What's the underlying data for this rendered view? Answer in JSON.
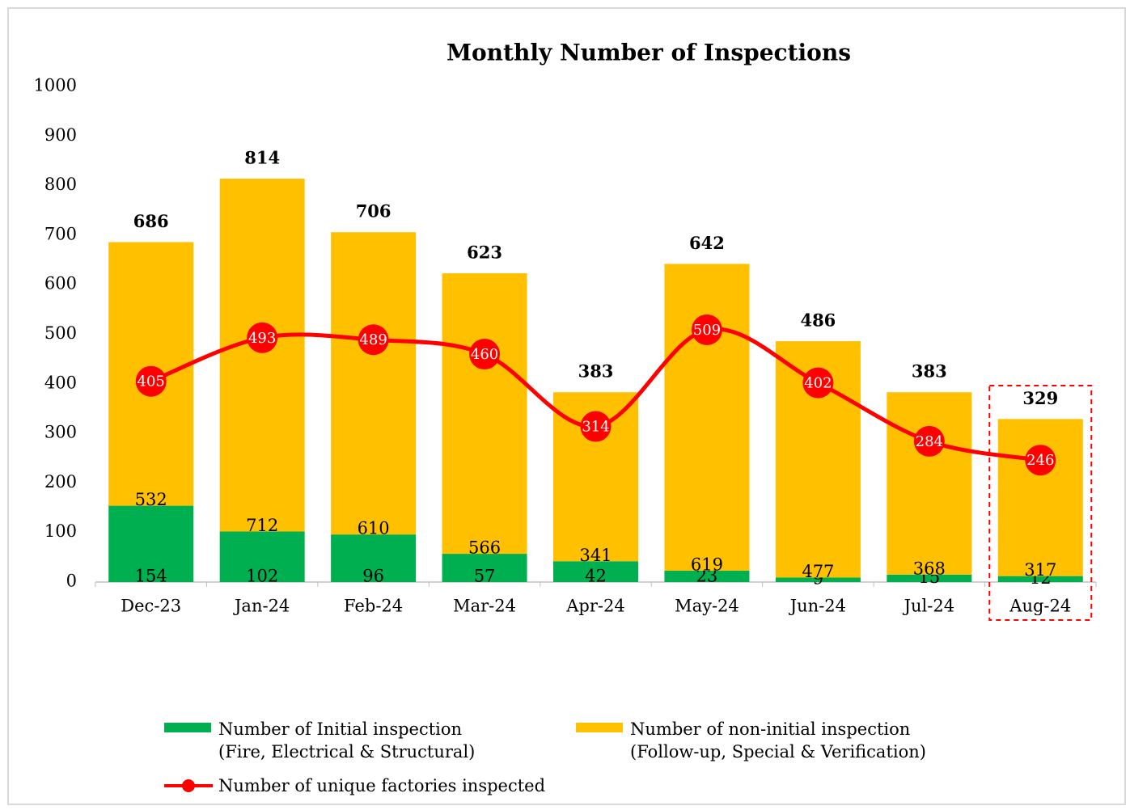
{
  "chart_data": {
    "type": "stacked-bar-line",
    "title": "Monthly Number of Inspections",
    "categories": [
      "Dec-23",
      "Jan-24",
      "Feb-24",
      "Mar-24",
      "Apr-24",
      "May-24",
      "Jun-24",
      "Jul-24",
      "Aug-24"
    ],
    "series": [
      {
        "name": "Number of Initial inspection\n(Fire, Electrical & Structural)",
        "color": "#00b050",
        "type": "bar",
        "values": [
          154,
          102,
          96,
          57,
          42,
          23,
          9,
          15,
          12
        ]
      },
      {
        "name": "Number of non-initial inspection\n(Follow-up, Special & Verification)",
        "color": "#ffc000",
        "type": "bar",
        "values": [
          532,
          712,
          610,
          566,
          341,
          619,
          477,
          368,
          317
        ]
      },
      {
        "name": "Number of unique factories inspected",
        "color": "#ff0000",
        "type": "line",
        "values": [
          405,
          493,
          489,
          460,
          314,
          509,
          402,
          284,
          246
        ]
      }
    ],
    "totals": [
      686,
      814,
      706,
      623,
      383,
      642,
      486,
      383,
      329
    ],
    "ylim": [
      0,
      1000
    ],
    "yticks": [
      0,
      100,
      200,
      300,
      400,
      500,
      600,
      700,
      800,
      900,
      1000
    ],
    "grid": false
  }
}
